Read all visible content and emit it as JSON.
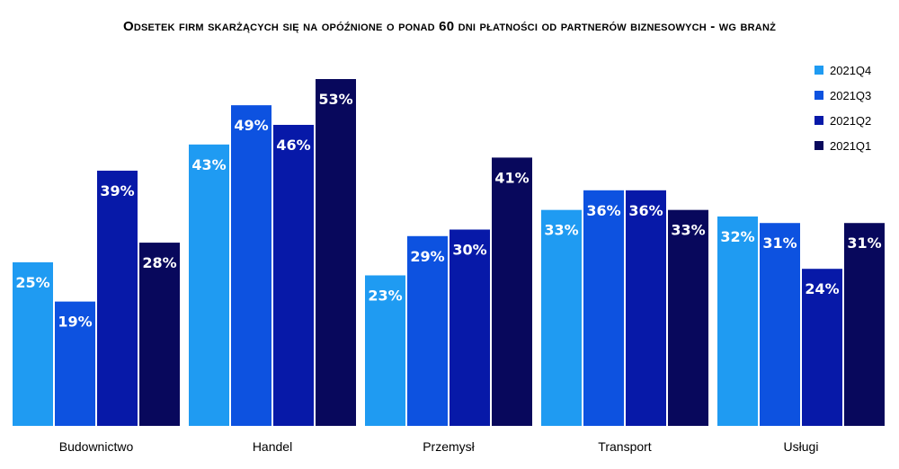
{
  "chart_data": {
    "type": "bar",
    "title": "Odsetek firm skarżących się na opóźnione o ponad 60 dni płatności od partnerów biznesowych - wg branż",
    "categories": [
      "Budownictwo",
      "Handel",
      "Przemysł",
      "Transport",
      "Usługi"
    ],
    "series": [
      {
        "name": "2021Q4",
        "color": "#1F9BF2",
        "values": [
          25,
          43,
          23,
          33,
          32
        ],
        "labels": [
          "25%",
          "43%",
          "23%",
          "33%",
          "32%"
        ]
      },
      {
        "name": "2021Q3",
        "color": "#0D52E0",
        "values": [
          19,
          49,
          29,
          36,
          31
        ],
        "labels": [
          "19%",
          "49%",
          "29%",
          "36%",
          "31%"
        ]
      },
      {
        "name": "2021Q2",
        "color": "#0719A8",
        "values": [
          39,
          46,
          30,
          36,
          24
        ],
        "labels": [
          "39%",
          "46%",
          "30%",
          "36%",
          "24%"
        ]
      },
      {
        "name": "2021Q1",
        "color": "#08085C",
        "values": [
          28,
          53,
          41,
          33,
          31
        ],
        "labels": [
          "28%",
          "53%",
          "41%",
          "33%",
          "31%"
        ]
      }
    ],
    "ylim": [
      0,
      53
    ],
    "legend_position": "top-right",
    "grid": false
  }
}
